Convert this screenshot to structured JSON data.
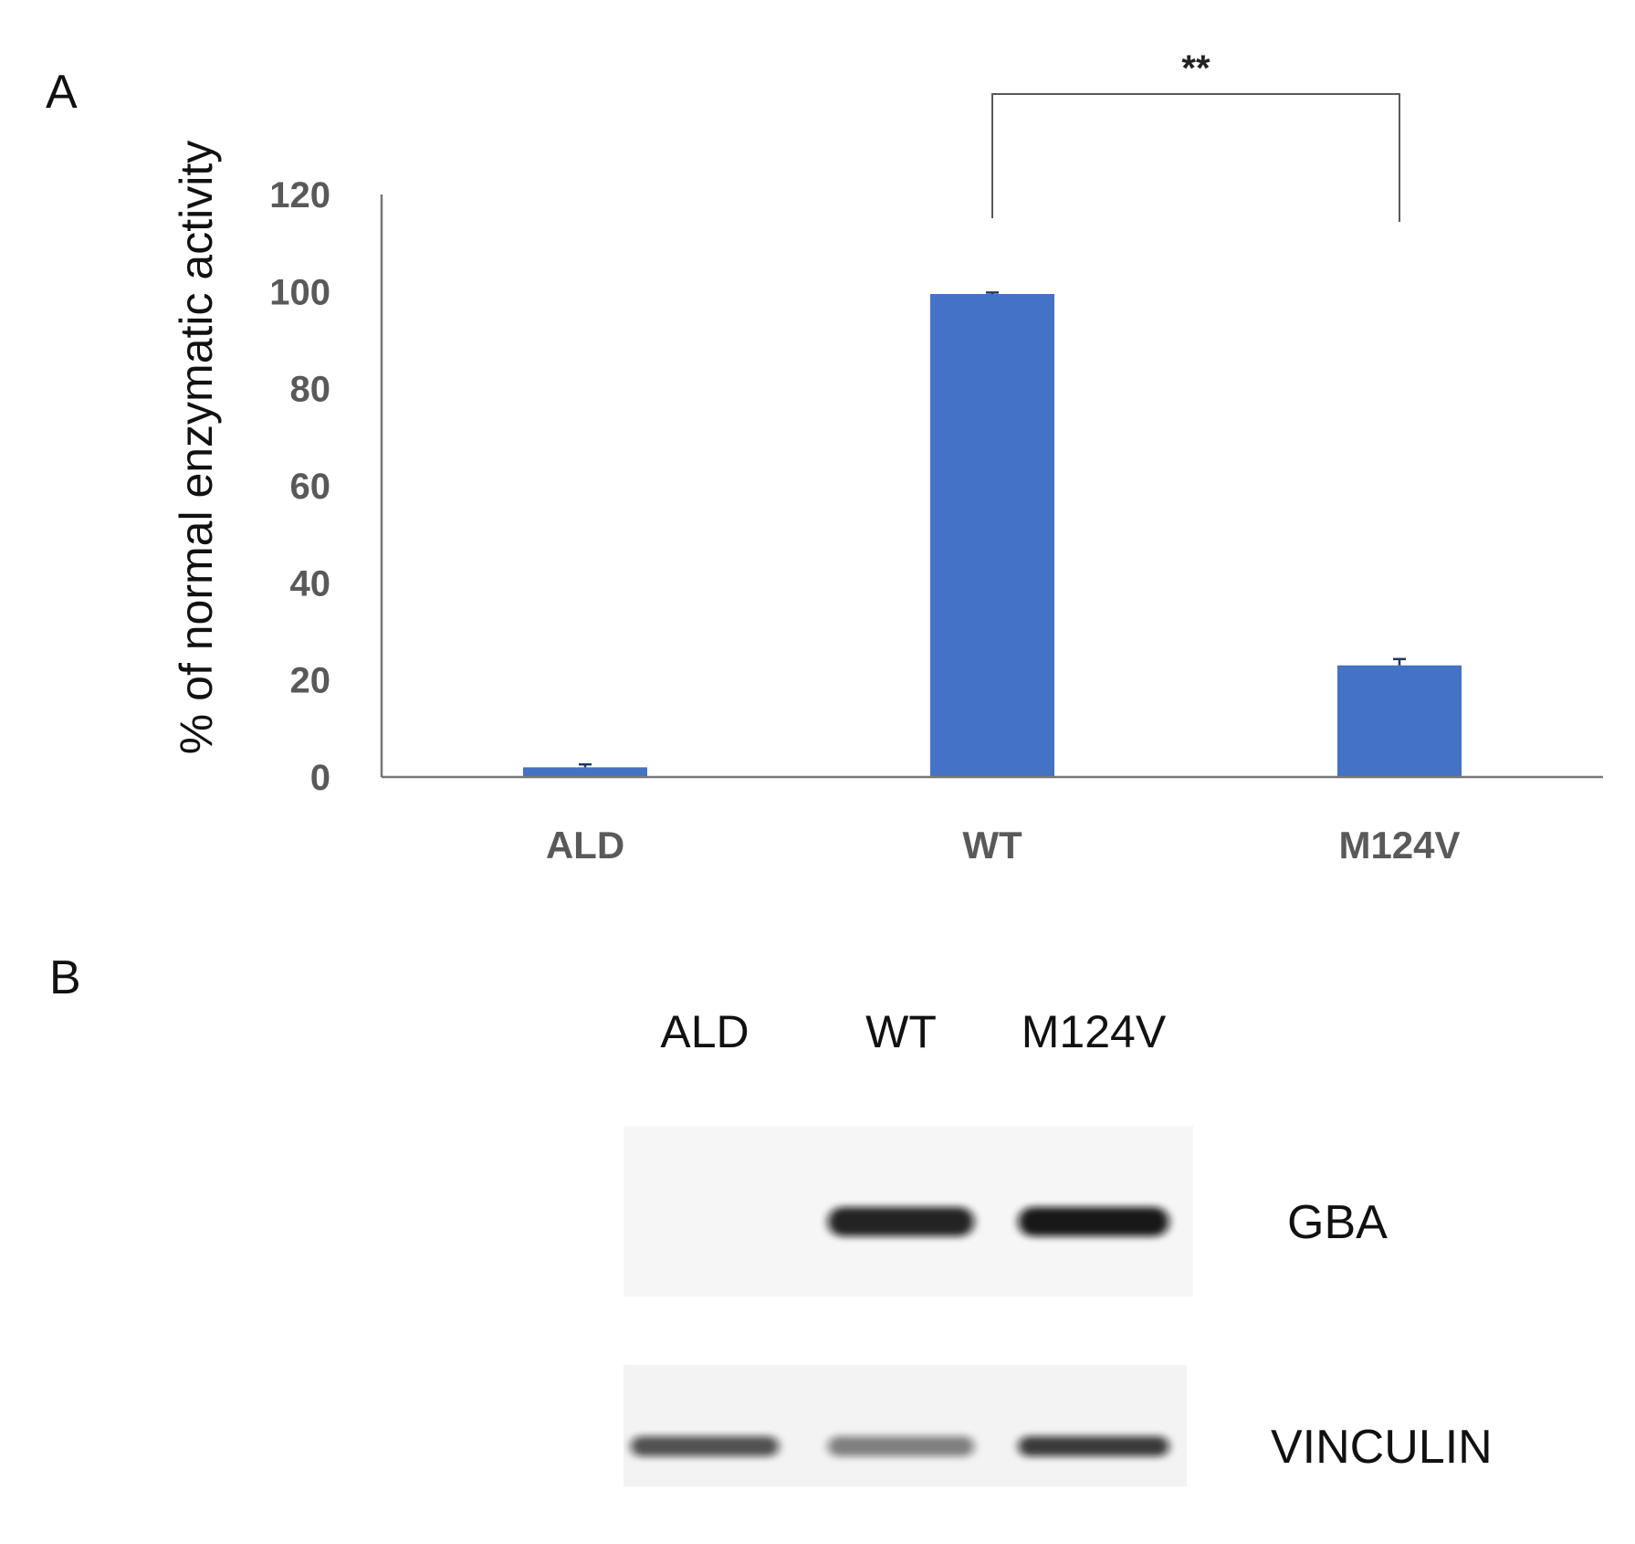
{
  "panels": {
    "a": {
      "label": "A"
    },
    "b": {
      "label": "B"
    }
  },
  "chart_data": {
    "type": "bar",
    "categories": [
      "ALD",
      "WT",
      "M124V"
    ],
    "values": [
      2,
      99.5,
      23
    ],
    "errors": [
      0.6,
      0.3,
      1.3
    ],
    "ylabel": "% of normal enzymatic activity",
    "xlabel": "",
    "ylim": [
      0,
      120
    ],
    "yticks": [
      "0",
      "20",
      "40",
      "60",
      "80",
      "100",
      "120"
    ],
    "grid": false,
    "legend": "none",
    "bar_color": "#4472c4",
    "significance": {
      "between": [
        "WT",
        "M124V"
      ],
      "label": "**"
    }
  },
  "blot": {
    "lanes": [
      "ALD",
      "WT",
      "M124V"
    ],
    "rows": [
      {
        "label": "GBA",
        "intensities": [
          0.0,
          0.9,
          0.95
        ]
      },
      {
        "label": "VINCULIN",
        "intensities": [
          0.7,
          0.5,
          0.8
        ]
      }
    ]
  }
}
